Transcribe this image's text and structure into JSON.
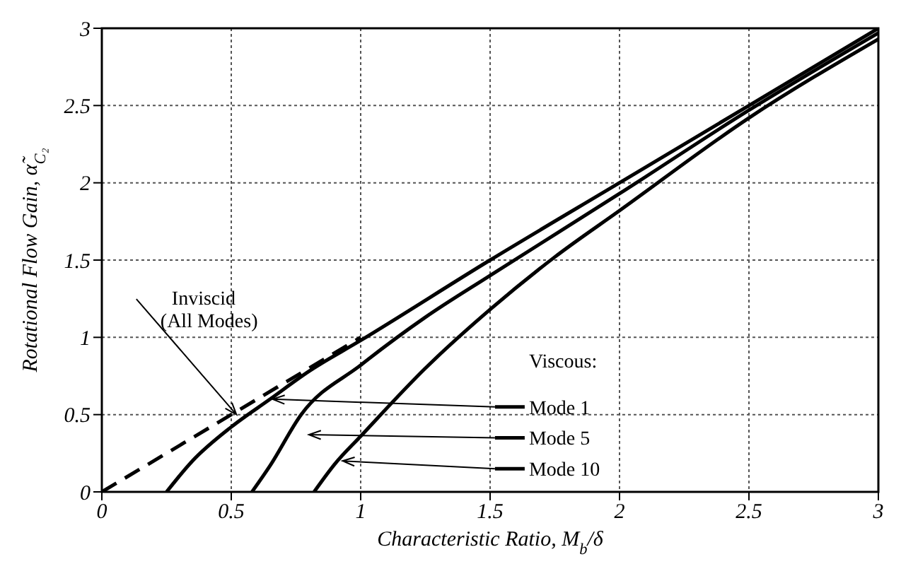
{
  "chart_data": {
    "type": "line",
    "xlabel": "Characteristic Ratio, M$_{b}$/δ",
    "ylabel": "Rotational Flow Gain, α̃$_{C₂}$",
    "xlim": [
      0,
      3
    ],
    "ylim": [
      0,
      3
    ],
    "xticks": [
      0,
      0.5,
      1,
      1.5,
      2,
      2.5,
      3
    ],
    "yticks": [
      0,
      0.5,
      1,
      1.5,
      2,
      2.5,
      3
    ],
    "grid": true,
    "legend": "bottom right",
    "marker": "none",
    "annotations": [
      "Viscous:"
    ],
    "series": [
      {
        "name": "Inviscid (All Modes)",
        "color": "#000000",
        "line_style": "dashed",
        "x": [
          0,
          0.5,
          1
        ],
        "values": [
          0,
          0.5,
          1
        ]
      },
      {
        "name": "Mode 1",
        "color": "#000000",
        "line_style": "solid",
        "x": [
          0.25,
          0.35,
          0.5,
          0.65,
          0.8,
          1,
          1.5,
          2,
          2.5,
          3
        ],
        "values": [
          0,
          0.2,
          0.42,
          0.6,
          0.78,
          0.98,
          1.5,
          2,
          2.5,
          3
        ]
      },
      {
        "name": "Mode 5",
        "color": "#000000",
        "line_style": "solid",
        "x": [
          0.58,
          0.65,
          0.77,
          1,
          1.25,
          1.5,
          2,
          2.5,
          3
        ],
        "values": [
          0,
          0.17,
          0.5,
          0.82,
          1.13,
          1.4,
          1.93,
          2.47,
          2.97
        ]
      },
      {
        "name": "Mode 10",
        "color": "#000000",
        "line_style": "solid",
        "x": [
          0.82,
          0.9,
          1,
          1.25,
          1.5,
          1.75,
          2,
          2.5,
          3
        ],
        "values": [
          0,
          0.18,
          0.36,
          0.8,
          1.18,
          1.52,
          1.82,
          2.42,
          2.93
        ]
      }
    ]
  }
}
